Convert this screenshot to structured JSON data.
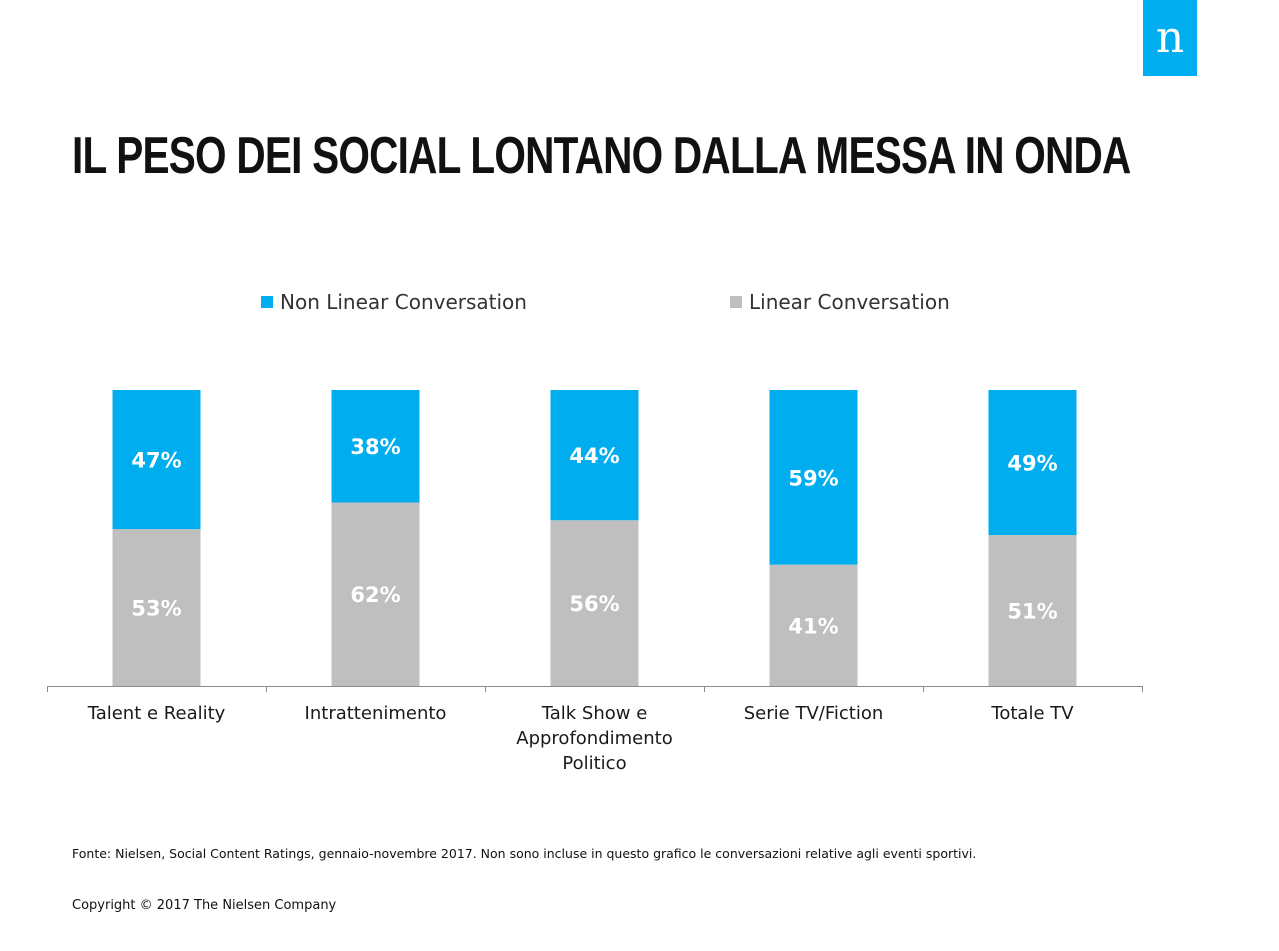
{
  "logo": {
    "letter": "n"
  },
  "title": "IL PESO DEI SOCIAL LONTANO DALLA MESSA IN ONDA",
  "colors": {
    "brand": "#00aeef",
    "non_linear": "#00aeef",
    "linear": "#bfbfbf"
  },
  "chart_data": {
    "type": "bar",
    "stacked": true,
    "categories": [
      [
        "Talent e Reality"
      ],
      [
        "Intrattenimento"
      ],
      [
        "Talk Show e",
        "Approfondimento",
        "Politico"
      ],
      [
        "Serie TV/Fiction"
      ],
      [
        "Totale TV"
      ]
    ],
    "series": [
      {
        "name": "Non Linear Conversation",
        "color": "#00aeef",
        "values": [
          47,
          38,
          44,
          59,
          49
        ],
        "labels": [
          "47%",
          "38%",
          "44%",
          "59%",
          "49%"
        ]
      },
      {
        "name": "Linear Conversation",
        "color": "#bfbfbf",
        "values": [
          53,
          62,
          56,
          41,
          51
        ],
        "labels": [
          "53%",
          "62%",
          "56%",
          "41%",
          "51%"
        ]
      }
    ],
    "ylim": [
      0,
      100
    ],
    "legend_position": "top",
    "grid": false
  },
  "footer": {
    "source": "Fonte: Nielsen, Social Content Ratings, gennaio-novembre 2017. Non sono incluse in questo grafico le conversazioni relative agli eventi sportivi.",
    "copyright": "Copyright © 2017 The Nielsen Company"
  }
}
